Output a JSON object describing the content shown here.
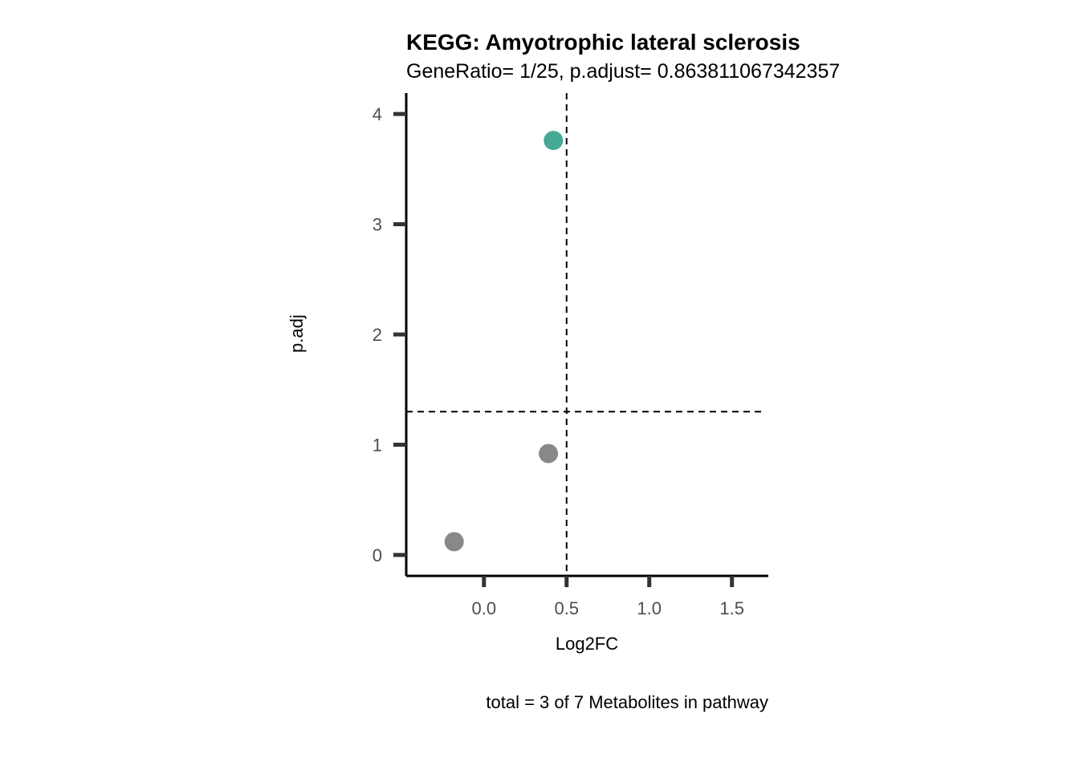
{
  "chart_data": {
    "type": "scatter",
    "title": "KEGG: Amyotrophic lateral sclerosis",
    "subtitle": "GeneRatio= 1/25, p.adjust= 0.863811067342357",
    "xlabel": "Log2FC",
    "ylabel": "p.adj",
    "caption": "total = 3 of 7 Metabolites in pathway",
    "xlim": [
      -0.47,
      1.72
    ],
    "ylim": [
      -0.19,
      4.19
    ],
    "x_ticks": [
      0.0,
      0.5,
      1.0,
      1.5
    ],
    "x_tick_labels": [
      "0.0",
      "0.5",
      "1.0",
      "1.5"
    ],
    "y_ticks": [
      0,
      1,
      2,
      3,
      4
    ],
    "y_tick_labels": [
      "0",
      "1",
      "2",
      "3",
      "4"
    ],
    "threshold_x": 0.5,
    "threshold_y": 1.3,
    "grid": false,
    "points": [
      {
        "x": -0.18,
        "y": 0.12,
        "significant": false
      },
      {
        "x": 0.39,
        "y": 0.92,
        "significant": false
      },
      {
        "x": 0.42,
        "y": 3.76,
        "significant": true
      }
    ],
    "colors": {
      "significant": "#45a996",
      "not_significant": "#888888",
      "axis": "#000000",
      "ticks": "#333333"
    }
  }
}
